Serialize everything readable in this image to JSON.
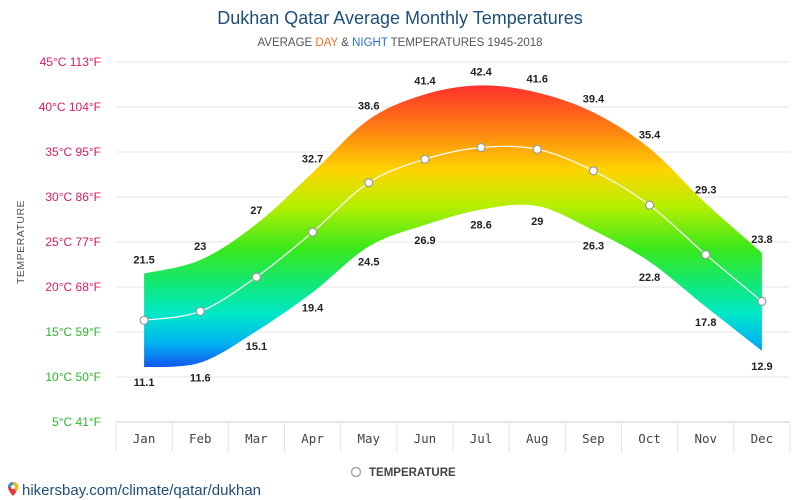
{
  "chart_data": {
    "type": "area",
    "title": "Dukhan Qatar Average Monthly Temperatures",
    "subtitle": {
      "prefix": "AVERAGE ",
      "day": "DAY",
      "amp": " & ",
      "night": "NIGHT",
      "suffix": " TEMPERATURES 1945-2018"
    },
    "ylabel": "TEMPERATURE",
    "categories": [
      "Jan",
      "Feb",
      "Mar",
      "Apr",
      "May",
      "Jun",
      "Jul",
      "Aug",
      "Sep",
      "Oct",
      "Nov",
      "Dec"
    ],
    "y_ticks": [
      {
        "value": 45,
        "label": "45°C 113°F",
        "color": "#d81b60"
      },
      {
        "value": 40,
        "label": "40°C 104°F",
        "color": "#d81b60"
      },
      {
        "value": 35,
        "label": "35°C 95°F",
        "color": "#d81b60"
      },
      {
        "value": 30,
        "label": "30°C 86°F",
        "color": "#d81b60"
      },
      {
        "value": 25,
        "label": "25°C 77°F",
        "color": "#d81b60"
      },
      {
        "value": 20,
        "label": "20°C 68°F",
        "color": "#d81b60"
      },
      {
        "value": 15,
        "label": "15°C 59°F",
        "color": "#2fb52f"
      },
      {
        "value": 10,
        "label": "10°C 50°F",
        "color": "#2fb52f"
      },
      {
        "value": 5,
        "label": "5°C 41°F",
        "color": "#2fb52f"
      }
    ],
    "ylim": [
      5,
      45
    ],
    "series": [
      {
        "name": "DAY",
        "values": [
          21.5,
          23,
          27,
          32.7,
          38.6,
          41.4,
          42.4,
          41.6,
          39.4,
          35.4,
          29.3,
          23.8
        ]
      },
      {
        "name": "NIGHT",
        "values": [
          11.1,
          11.6,
          15.1,
          19.4,
          24.5,
          26.9,
          28.6,
          29,
          26.3,
          22.8,
          17.8,
          12.9
        ]
      },
      {
        "name": "TEMPERATURE",
        "values": [
          16.3,
          17.3,
          21.1,
          26.1,
          31.6,
          34.2,
          35.5,
          35.3,
          32.9,
          29.1,
          23.6,
          18.4
        ]
      }
    ],
    "legend": {
      "label": "TEMPERATURE",
      "position": "bottom-center"
    },
    "grid": true,
    "colors": {
      "day": "#e8742a",
      "night": "#2a6fc9",
      "mean_line": "#ffffff",
      "grid": "#e6e6e6"
    }
  },
  "footer": {
    "text": "hikersbay.com/climate/qatar/dukhan",
    "icon": "location-pin-icon"
  }
}
